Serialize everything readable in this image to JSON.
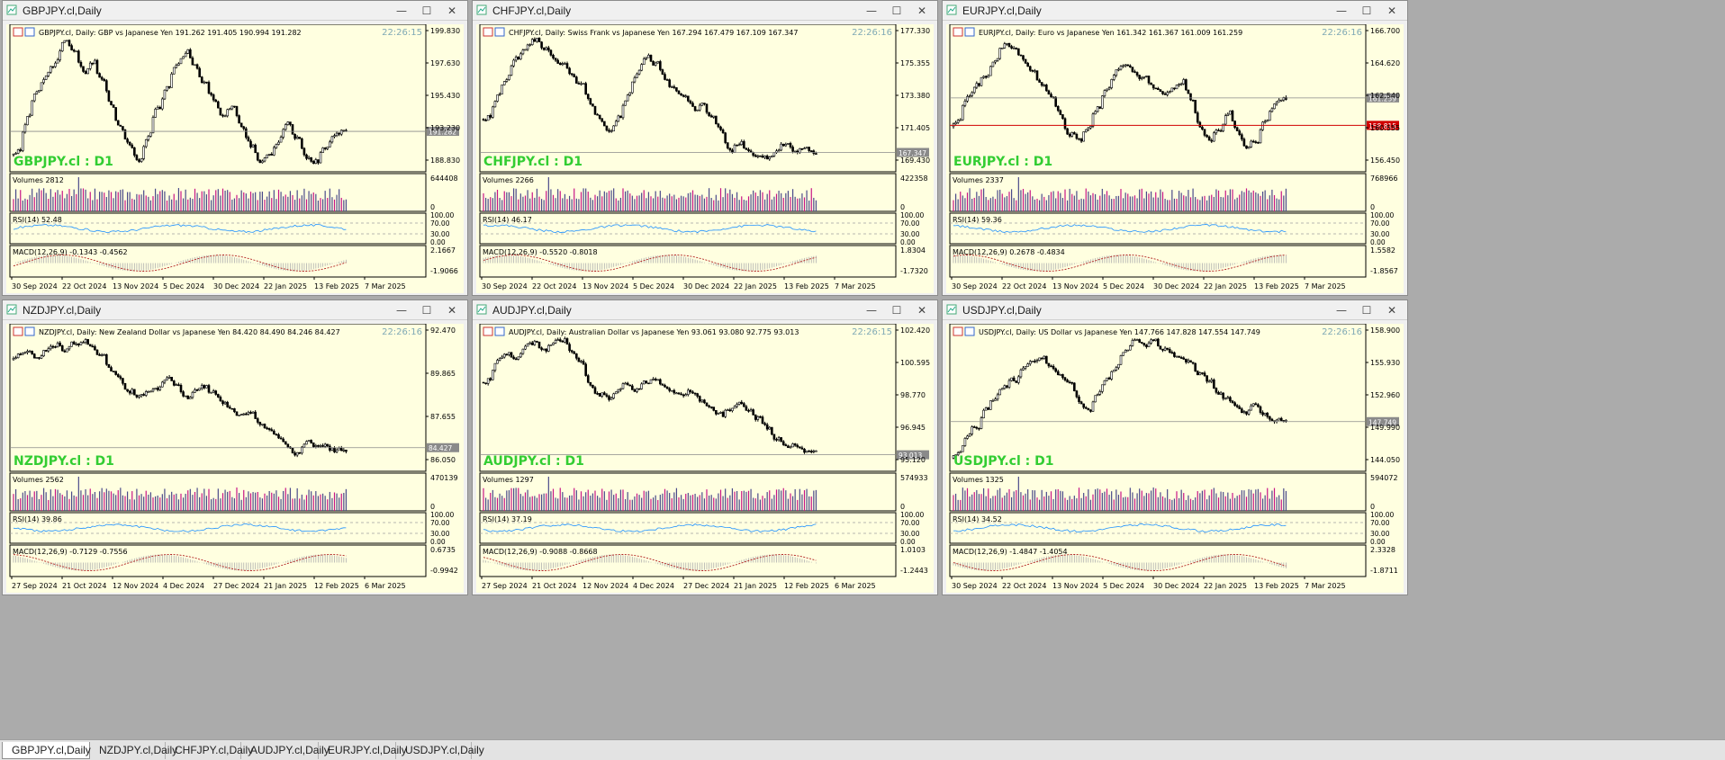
{
  "tabs": [
    {
      "label": "GBPJPY.cl,Daily",
      "active": true
    },
    {
      "label": "NZDJPY.cl,Daily",
      "active": false
    },
    {
      "label": "CHFJPY.cl,Daily",
      "active": false
    },
    {
      "label": "AUDJPY.cl,Daily",
      "active": false
    },
    {
      "label": "EURJPY.cl,Daily",
      "active": false
    },
    {
      "label": "USDJPY.cl,Daily",
      "active": false
    }
  ],
  "window_buttons": {
    "minimize": "—",
    "maximize": "☐",
    "close": "✕"
  },
  "indicator_bounds": {
    "rsi_top": "100.00",
    "rsi_hi": "70.00",
    "rsi_lo": "30.00",
    "rsi_bottom": "0.00",
    "vol_bottom": "0"
  },
  "windows": [
    {
      "title": "GBPJPY.cl,Daily",
      "header": "GBPJPY.cl, Daily:  GBP vs Japanese Yen  191.262 191.405 190.994 191.282",
      "time": "22:26:15",
      "symbol_label": "GBPJPY.cl : D1",
      "price_labels": [
        "199.830",
        "197.630",
        "195.430",
        "193.230",
        "191.282",
        "188.830"
      ],
      "current_price": "191.282",
      "volumes_label": "Volumes 2812",
      "volume_max": "644408",
      "rsi_label": "RSI(14) 52.48",
      "macd_label": "MACD(12,26,9) -0.1343 -0.4562",
      "macd_top": "2.1667",
      "macd_bottom": "-1.9066",
      "dates": [
        "30 Sep 2024",
        "22 Oct 2024",
        "13 Nov 2024",
        "5 Dec 2024",
        "30 Dec 2024",
        "22 Jan 2025",
        "13 Feb 2025",
        "7 Mar 2025"
      ],
      "chart_data": {
        "type": "candlestick",
        "x_start": "30 Sep 2024",
        "x_end": "7 Mar 2025",
        "ylim": [
          188.0,
          200.5
        ],
        "close": [
          189.5,
          193.0,
          195.0,
          196.5,
          197.5,
          199.5,
          198.0,
          196.5,
          197.5,
          195.5,
          193.5,
          191.5,
          190.0,
          188.8,
          191.0,
          193.5,
          195.5,
          197.5,
          198.5,
          197.0,
          195.5,
          194.0,
          192.5,
          193.5,
          191.5,
          189.8,
          188.3,
          189.5,
          190.8,
          192.0,
          190.5,
          189.0,
          188.7,
          190.0,
          191.0,
          191.282
        ],
        "current": 191.282
      }
    },
    {
      "title": "CHFJPY.cl,Daily",
      "header": "CHFJPY.cl, Daily:  Swiss Frank vs Japanese Yen  167.294 167.479 167.109 167.347",
      "time": "22:26:16",
      "symbol_label": "CHFJPY.cl : D1",
      "price_labels": [
        "177.330",
        "175.355",
        "173.380",
        "171.405",
        "169.430",
        "167.347"
      ],
      "current_price": "167.347",
      "volumes_label": "Volumes 2266",
      "volume_max": "422358",
      "rsi_label": "RSI(14) 46.17",
      "macd_label": "MACD(12,26,9) -0.5520 -0.8018",
      "macd_top": "1.8304",
      "macd_bottom": "-1.7320",
      "dates": [
        "30 Sep 2024",
        "22 Oct 2024",
        "13 Nov 2024",
        "5 Dec 2024",
        "30 Dec 2024",
        "22 Jan 2025",
        "13 Feb 2025",
        "7 Mar 2025"
      ],
      "chart_data": {
        "type": "candlestick",
        "x_start": "30 Sep 2024",
        "x_end": "7 Mar 2025",
        "ylim": [
          166.0,
          178.0
        ],
        "close": [
          170.5,
          172.5,
          174.0,
          175.5,
          176.5,
          177.0,
          176.2,
          175.4,
          174.8,
          174.0,
          172.8,
          171.5,
          170.2,
          169.2,
          170.5,
          172.5,
          174.5,
          175.5,
          174.8,
          173.5,
          172.5,
          171.8,
          171.0,
          171.5,
          170.5,
          169.0,
          167.5,
          168.2,
          167.6,
          167.0,
          166.8,
          167.5,
          168.1,
          167.3,
          167.6,
          167.347
        ],
        "current": 167.347
      }
    },
    {
      "title": "EURJPY.cl,Daily",
      "header": "EURJPY.cl, Daily:  Euro vs Japanese Yen  161.342 161.367 161.009 161.259",
      "time": "22:26:16",
      "symbol_label": "EURJPY.cl : D1",
      "price_labels": [
        "166.700",
        "164.620",
        "162.540",
        "161.259",
        "160.555",
        "158.815",
        "156.450"
      ],
      "current_price": "161.259",
      "alert_price": "158.815",
      "volumes_label": "Volumes 2337",
      "volume_max": "768966",
      "rsi_label": "RSI(14) 59.36",
      "macd_label": "MACD(12,26,9) 0.2678 -0.4834",
      "macd_top": "1.5582",
      "macd_bottom": "-1.8567",
      "dates": [
        "30 Sep 2024",
        "22 Oct 2024",
        "13 Nov 2024",
        "5 Dec 2024",
        "30 Dec 2024",
        "22 Jan 2025",
        "13 Feb 2025",
        "7 Mar 2025"
      ],
      "chart_data": {
        "type": "candlestick",
        "x_start": "30 Sep 2024",
        "x_end": "7 Mar 2025",
        "ylim": [
          155.0,
          167.5
        ],
        "close": [
          159.0,
          161.5,
          162.5,
          163.5,
          164.5,
          166.2,
          165.5,
          164.5,
          163.8,
          162.5,
          161.0,
          159.5,
          158.0,
          157.5,
          159.0,
          160.5,
          162.5,
          164.0,
          164.5,
          163.5,
          162.8,
          162.0,
          161.5,
          162.2,
          163.0,
          161.0,
          158.5,
          157.2,
          158.5,
          160.0,
          158.0,
          156.8,
          157.5,
          159.5,
          160.8,
          161.259
        ],
        "current": 161.259,
        "alert": 158.815
      }
    },
    {
      "title": "NZDJPY.cl,Daily",
      "header": "NZDJPY.cl, Daily:  New Zealand Dollar vs Japanese Yen  84.420 84.490 84.246 84.427",
      "time": "22:26:16",
      "symbol_label": "NZDJPY.cl : D1",
      "price_labels": [
        "92.470",
        "89.865",
        "87.655",
        "86.050",
        "84.427"
      ],
      "current_price": "84.427",
      "volumes_label": "Volumes 2562",
      "volume_max": "470139",
      "rsi_label": "RSI(14) 39.86",
      "macd_label": "MACD(12,26,9) -0.7129 -0.7556",
      "macd_top": "0.6735",
      "macd_bottom": "-0.9942",
      "dates": [
        "27 Sep 2024",
        "21 Oct 2024",
        "12 Nov 2024",
        "4 Dec 2024",
        "27 Dec 2024",
        "21 Jan 2025",
        "12 Feb 2025",
        "6 Mar 2025"
      ],
      "chart_data": {
        "type": "candlestick",
        "x_start": "27 Sep 2024",
        "x_end": "6 Mar 2025",
        "ylim": [
          83.0,
          93.0
        ],
        "close": [
          91.0,
          91.2,
          90.8,
          91.5,
          91.8,
          91.3,
          91.9,
          92.0,
          91.4,
          90.8,
          89.8,
          89.0,
          88.5,
          88.0,
          88.4,
          88.8,
          89.2,
          88.6,
          88.0,
          88.5,
          88.9,
          88.2,
          87.5,
          87.0,
          86.5,
          86.8,
          86.2,
          85.6,
          85.0,
          84.5,
          84.0,
          84.8,
          84.3,
          84.6,
          84.2,
          84.427
        ],
        "current": 84.427
      }
    },
    {
      "title": "AUDJPY.cl,Daily",
      "header": "AUDJPY.cl, Daily:  Australian Dollar vs Japanese Yen  93.061 93.080 92.775 93.013",
      "time": "22:26:15",
      "symbol_label": "AUDJPY.cl : D1",
      "price_labels": [
        "102.420",
        "100.595",
        "98.770",
        "96.945",
        "95.120",
        "93.013"
      ],
      "current_price": "93.013",
      "volumes_label": "Volumes 1297",
      "volume_max": "574933",
      "rsi_label": "RSI(14) 37.19",
      "macd_label": "MACD(12,26,9) -0.9088 -0.8668",
      "macd_top": "1.0103",
      "macd_bottom": "-1.2443",
      "dates": [
        "27 Sep 2024",
        "21 Oct 2024",
        "12 Nov 2024",
        "4 Dec 2024",
        "27 Dec 2024",
        "21 Jan 2025",
        "12 Feb 2025",
        "6 Mar 2025"
      ],
      "chart_data": {
        "type": "candlestick",
        "x_start": "27 Sep 2024",
        "x_end": "6 Mar 2025",
        "ylim": [
          92.0,
          103.0
        ],
        "close": [
          99.0,
          100.5,
          101.0,
          100.5,
          101.5,
          101.8,
          101.2,
          101.9,
          102.0,
          101.0,
          100.0,
          98.5,
          97.8,
          97.5,
          98.0,
          98.6,
          98.2,
          98.8,
          99.2,
          98.5,
          98.0,
          97.5,
          98.0,
          97.2,
          96.5,
          96.0,
          96.8,
          97.2,
          96.5,
          95.8,
          95.0,
          94.2,
          93.5,
          93.8,
          93.2,
          93.013
        ],
        "current": 93.013
      }
    },
    {
      "title": "USDJPY.cl,Daily",
      "header": "USDJPY.cl, Daily:  US Dollar vs Japanese Yen  147.766 147.828 147.554 147.749",
      "time": "22:26:16",
      "symbol_label": "USDJPY.cl : D1",
      "price_labels": [
        "158.900",
        "155.930",
        "152.960",
        "149.990",
        "147.749",
        "144.050"
      ],
      "current_price": "147.749",
      "volumes_label": "Volumes 1325",
      "volume_max": "594072",
      "rsi_label": "RSI(14) 34.52",
      "macd_label": "MACD(12,26,9) -1.4847 -1.4054",
      "macd_top": "2.3328",
      "macd_bottom": "-1.8711",
      "dates": [
        "30 Sep 2024",
        "22 Oct 2024",
        "13 Nov 2024",
        "5 Dec 2024",
        "30 Dec 2024",
        "22 Jan 2025",
        "13 Feb 2025",
        "7 Mar 2025"
      ],
      "chart_data": {
        "type": "candlestick",
        "x_start": "30 Sep 2024",
        "x_end": "7 Mar 2025",
        "ylim": [
          142.0,
          159.5
        ],
        "close": [
          143.5,
          146.0,
          147.5,
          149.5,
          151.0,
          152.5,
          153.0,
          154.5,
          155.0,
          156.0,
          154.5,
          153.5,
          152.0,
          150.0,
          149.5,
          151.5,
          153.5,
          155.0,
          157.0,
          158.0,
          157.5,
          158.2,
          157.0,
          156.0,
          155.5,
          155.0,
          153.5,
          152.5,
          151.0,
          150.5,
          149.5,
          149.0,
          150.0,
          148.5,
          147.8,
          147.749
        ],
        "current": 147.749
      }
    }
  ]
}
